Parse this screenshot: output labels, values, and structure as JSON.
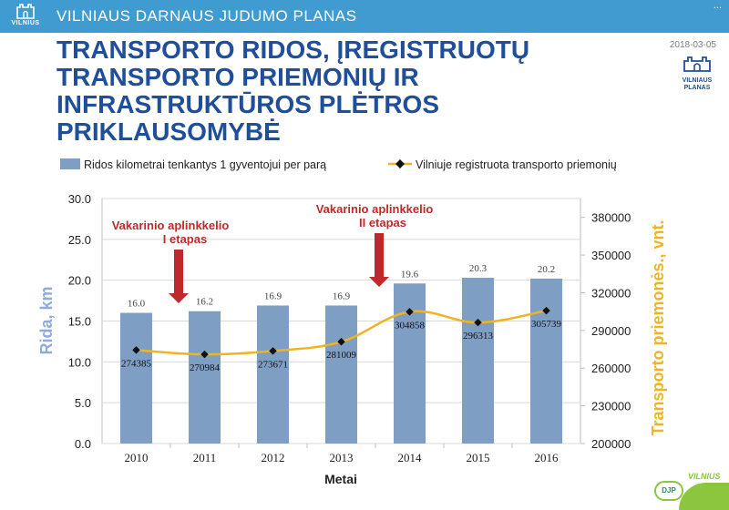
{
  "header": {
    "logo_text": "VILNIUS",
    "title": "VILNIAUS DARNAUS JUDUMO PLANAS",
    "corner": "..."
  },
  "slide": {
    "title": "TRANSPORTO RIDOS, ĮREGISTRUOTŲ TRANSPORTO PRIEMONIŲ IR INFRASTRUKTŪROS PLĖTROS PRIKLAUSOMYBĖ",
    "date": "2018-03-05",
    "plan_logo": [
      "VILNIAUS",
      "PLANAS"
    ]
  },
  "footer": {
    "badge": "DJP",
    "brand": "VILNIUS"
  },
  "colors": {
    "bar": "#7f9ec4",
    "line": "#f0b323",
    "annotation": "#c0292b",
    "left_axis_label": "#8faadc",
    "right_axis_label": "#f0b323",
    "title": "#1f4e9a",
    "header": "#3f9bd0"
  },
  "chart_data": {
    "type": "bar+line",
    "categories": [
      "2010",
      "2011",
      "2012",
      "2013",
      "2014",
      "2015",
      "2016"
    ],
    "xlabel": "Metai",
    "series": [
      {
        "name": "Ridos kilometrai tenkantys 1 gyventojui per parą",
        "type": "bar",
        "axis": "left",
        "values": [
          16.0,
          16.2,
          16.9,
          16.9,
          19.6,
          20.3,
          20.2
        ],
        "labels": [
          "16.0",
          "16.2",
          "16.9",
          "16.9",
          "19.6",
          "20.3",
          "20.2"
        ]
      },
      {
        "name": "Vilniuje registruota transporto priemonių",
        "type": "line",
        "axis": "right",
        "values": [
          274385,
          270984,
          273671,
          281009,
          304858,
          296313,
          305739
        ],
        "labels": [
          "274385",
          "270984",
          "273671",
          "281009",
          "304858",
          "296313",
          "305739"
        ]
      }
    ],
    "left_axis": {
      "label": "Rida, km",
      "ylim": [
        0,
        30
      ],
      "ticks": [
        "0.0",
        "5.0",
        "10.0",
        "15.0",
        "20.0",
        "25.0",
        "30.0"
      ]
    },
    "right_axis": {
      "label": "Transporto priemonės., vnt.",
      "ylim": [
        200000,
        395000
      ],
      "ticks": [
        "200000",
        "230000",
        "260000",
        "290000",
        "320000",
        "350000",
        "380000"
      ]
    },
    "annotations": [
      {
        "text": [
          "Vakarinio aplinkkelio",
          "I etapas"
        ],
        "between": [
          2010,
          2011
        ]
      },
      {
        "text": [
          "Vakarinio aplinkkelio",
          "II etapas"
        ],
        "between": [
          2013,
          2014
        ]
      }
    ]
  }
}
